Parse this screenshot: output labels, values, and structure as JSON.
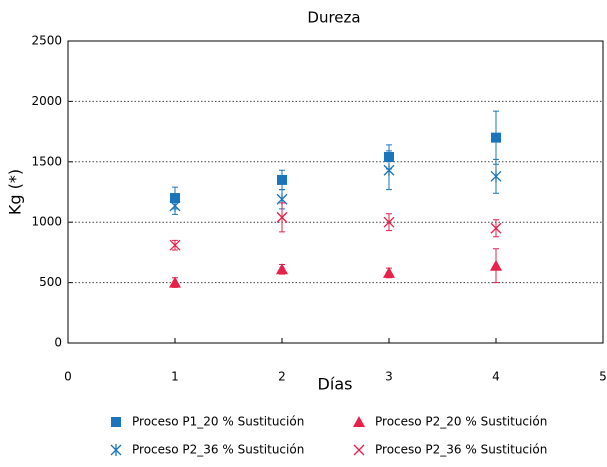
{
  "chart_data": {
    "type": "scatter",
    "title": "Dureza",
    "x_label": "Días",
    "y_label": "Kg (*)",
    "x": [
      1,
      2,
      3,
      4
    ],
    "xlim": [
      0,
      5
    ],
    "xticks": [
      0,
      1,
      2,
      3,
      4,
      5
    ],
    "ylim": [
      0,
      2500
    ],
    "yticks": [
      0,
      500,
      1000,
      1500,
      2000,
      2500
    ],
    "grid": true,
    "legend": "bottom",
    "series": [
      {
        "name": "Proceso P1_20 % Sustitución",
        "color": "#1b75bc",
        "marker": "square",
        "values": [
          1200,
          1350,
          1540,
          1700
        ],
        "errors": [
          90,
          80,
          100,
          220
        ]
      },
      {
        "name": "Proceso P2_20 % Sustitución",
        "color": "#e8214a",
        "marker": "triangle",
        "values": [
          500,
          610,
          580,
          640
        ],
        "errors": [
          40,
          40,
          40,
          140
        ]
      },
      {
        "name": "Proceso P2_36 % Sustitución",
        "color": "#1b75bc",
        "marker": "asterisk",
        "values": [
          1135,
          1190,
          1430,
          1380
        ],
        "errors": [
          70,
          80,
          160,
          140
        ]
      },
      {
        "name": "Proceso P2_36 % Sustitución",
        "color": "#e8214a",
        "marker": "x",
        "values": [
          810,
          1040,
          1000,
          950
        ],
        "errors": [
          40,
          120,
          70,
          70
        ]
      }
    ]
  }
}
